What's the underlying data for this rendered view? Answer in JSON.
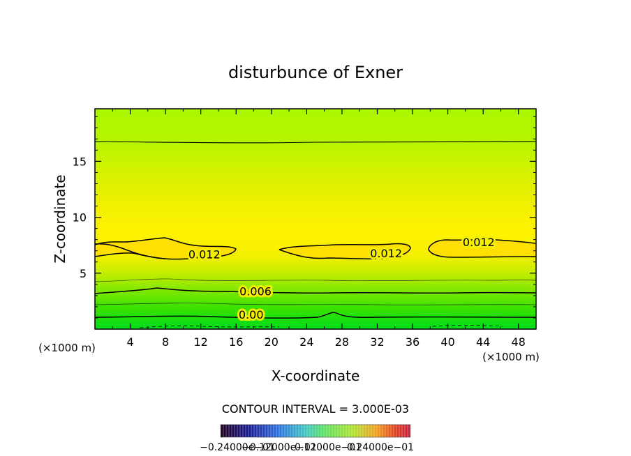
{
  "chart_data": {
    "type": "contour",
    "title": "disturbunce of Exner",
    "xlabel": "X-coordinate",
    "ylabel": "Z-coordinate",
    "x_unit": "(×1000 m)",
    "y_unit": "(×1000 m)",
    "xlim": [
      0,
      50
    ],
    "ylim": [
      0,
      19.7
    ],
    "x_ticks": [
      4,
      8,
      12,
      16,
      20,
      24,
      28,
      32,
      36,
      40,
      44,
      48
    ],
    "y_ticks": [
      5,
      10,
      15
    ],
    "contour_interval_text": "CONTOUR INTERVAL = 3.000E-03",
    "contour_labels": [
      {
        "text": "0.012",
        "x": 12.4,
        "z": 6.7
      },
      {
        "text": "0.012",
        "x": 33.0,
        "z": 6.8
      },
      {
        "text": "0.012",
        "x": 43.5,
        "z": 7.8
      },
      {
        "text": "0.006",
        "x": 18.2,
        "z": 3.4
      },
      {
        "text": "0.00",
        "x": 17.7,
        "z": 1.3
      }
    ],
    "colorbar_labels": [
      "−0.24000e−01",
      "−0.12000e−01",
      "0.12000e−01",
      "0.24000e−01"
    ],
    "colors": {
      "frame": "#000000",
      "field_top": "#aaf500",
      "field_mid": "#ffee00",
      "field_bottom": "#00e000"
    }
  }
}
